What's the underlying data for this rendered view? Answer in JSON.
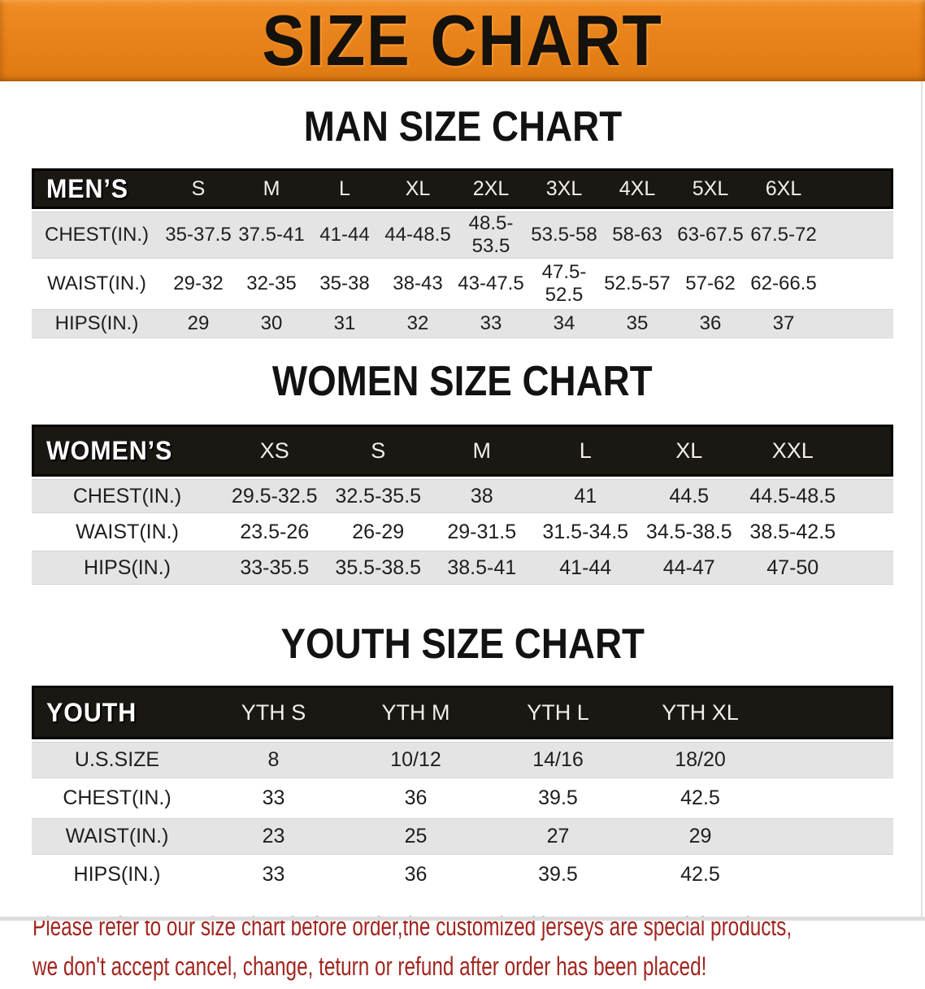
{
  "banner": {
    "title": "SIZE CHART",
    "background_color": "#E8821B",
    "text_color": "#15110C"
  },
  "sections": [
    {
      "id": "men",
      "heading": "MAN SIZE CHART",
      "group_label": "MEN’S",
      "columns": [
        "S",
        "M",
        "L",
        "XL",
        "2XL",
        "3XL",
        "4XL",
        "5XL",
        "6XL"
      ],
      "rows": [
        {
          "label": "CHEST(IN.)",
          "values": [
            "35-37.5",
            "37.5-41",
            "41-44",
            "44-48.5",
            "48.5-53.5",
            "53.5-58",
            "58-63",
            "63-67.5",
            "67.5-72"
          ]
        },
        {
          "label": "WAIST(IN.)",
          "values": [
            "29-32",
            "32-35",
            "35-38",
            "38-43",
            "43-47.5",
            "47.5-52.5",
            "52.5-57",
            "57-62",
            "62-66.5"
          ]
        },
        {
          "label": "HIPS(IN.)",
          "values": [
            "29",
            "30",
            "31",
            "32",
            "33",
            "34",
            "35",
            "36",
            "37"
          ]
        }
      ]
    },
    {
      "id": "women",
      "heading": "WOMEN SIZE CHART",
      "group_label": "WOMEN’S",
      "columns": [
        "XS",
        "S",
        "M",
        "L",
        "XL",
        "XXL"
      ],
      "rows": [
        {
          "label": "CHEST(IN.)",
          "values": [
            "29.5-32.5",
            "32.5-35.5",
            "38",
            "41",
            "44.5",
            "44.5-48.5"
          ]
        },
        {
          "label": "WAIST(IN.)",
          "values": [
            "23.5-26",
            "26-29",
            "29-31.5",
            "31.5-34.5",
            "34.5-38.5",
            "38.5-42.5"
          ]
        },
        {
          "label": "HIPS(IN.)",
          "values": [
            "33-35.5",
            "35.5-38.5",
            "38.5-41",
            "41-44",
            "44-47",
            "47-50"
          ]
        }
      ]
    },
    {
      "id": "youth",
      "heading": "YOUTH SIZE CHART",
      "group_label": "YOUTH",
      "columns": [
        "YTH S",
        "YTH M",
        "YTH L",
        "YTH XL"
      ],
      "rows": [
        {
          "label": "U.S.SIZE",
          "values": [
            "8",
            "10/12",
            "14/16",
            "18/20"
          ]
        },
        {
          "label": "CHEST(IN.)",
          "values": [
            "33",
            "36",
            "39.5",
            "42.5"
          ]
        },
        {
          "label": "WAIST(IN.)",
          "values": [
            "23",
            "25",
            "27",
            "29"
          ]
        },
        {
          "label": "HIPS(IN.)",
          "values": [
            "33",
            "36",
            "39.5",
            "42.5"
          ]
        }
      ]
    }
  ],
  "disclaimer": {
    "line1": "Please refer to our size chart before order,the customized jerseys are special products,",
    "line2": "we don't accept cancel, change, teturn or refund after order has been placed!",
    "text_color": "#A1261F"
  },
  "colors": {
    "header_bar": "#1B1713",
    "row_shade": "#E4E4E4"
  }
}
